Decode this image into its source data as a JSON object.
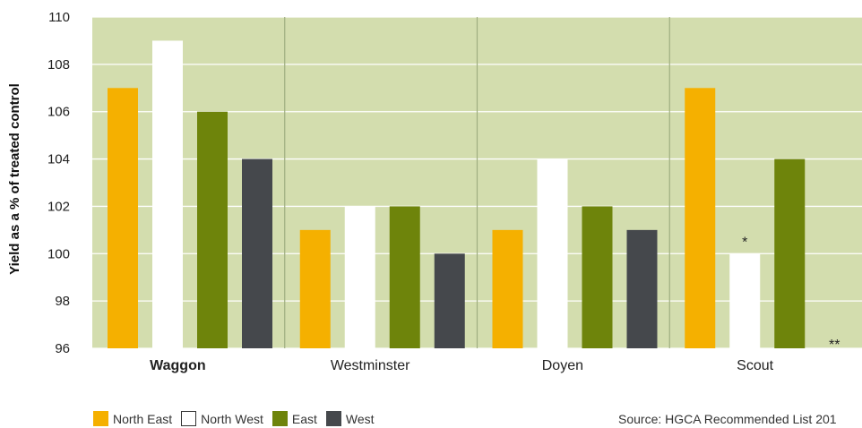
{
  "chart_data": {
    "type": "bar",
    "categories": [
      "Waggon",
      "Westminster",
      "Doyen",
      "Scout"
    ],
    "bold_category": "Waggon",
    "series": [
      {
        "name": "North East",
        "values": [
          107,
          101,
          101,
          107
        ],
        "color": "#F5B000"
      },
      {
        "name": "North West",
        "values": [
          109,
          102,
          104,
          100
        ],
        "color": "#FFFFFF"
      },
      {
        "name": "East",
        "values": [
          106,
          102,
          102,
          104
        ],
        "color": "#6E840B"
      },
      {
        "name": "West",
        "values": [
          104,
          100,
          101,
          null
        ],
        "color": "#45484C"
      }
    ],
    "ylabel": "Yield as a % of treated control",
    "ylim": [
      96,
      110
    ],
    "yticks": [
      "96",
      "98",
      "100",
      "102",
      "104",
      "106",
      "108",
      "110"
    ],
    "grid": true,
    "plot_background": "#D3DDAE",
    "annotations": [
      {
        "text": "*",
        "category": "Scout",
        "series": "North West"
      },
      {
        "text": "**",
        "category": "Scout",
        "series": "West"
      }
    ],
    "legend_position": "bottom-left",
    "source": "Source: HGCA Recommended List 201"
  }
}
